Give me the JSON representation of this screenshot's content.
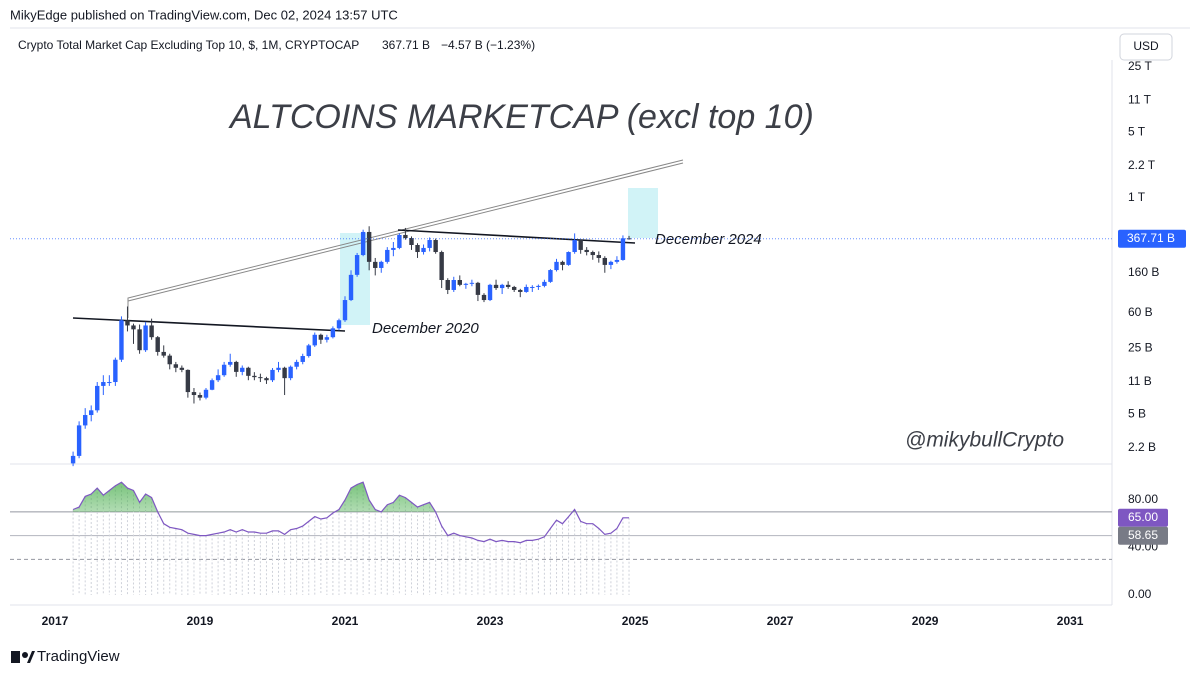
{
  "header": {
    "publisher": "MikyEdge published on TradingView.com, Dec 02, 2024 13:57 UTC",
    "legend": "Crypto Total Market Cap Excluding Top 10, $, 1M, CRYPTOCAP",
    "price": "367.71 B",
    "change": "−4.57 B (−1.23%)",
    "currency": "USD"
  },
  "footer": {
    "brand": "TradingView"
  },
  "chart_data": [
    {
      "type": "candlestick",
      "title": "ALTCOINS MARKETCAP (excl top 10)",
      "annotations": [
        "December 2020",
        "December 2024",
        "@mikybullCrypto"
      ],
      "x": [
        2017.25,
        2017.333,
        2017.417,
        2017.5,
        2017.583,
        2017.667,
        2017.75,
        2017.833,
        2017.917,
        2018,
        2018.083,
        2018.167,
        2018.25,
        2018.333,
        2018.417,
        2018.5,
        2018.583,
        2018.667,
        2018.75,
        2018.833,
        2018.917,
        2019,
        2019.083,
        2019.167,
        2019.25,
        2019.333,
        2019.417,
        2019.5,
        2019.583,
        2019.667,
        2019.75,
        2019.833,
        2019.917,
        2020,
        2020.083,
        2020.167,
        2020.25,
        2020.333,
        2020.417,
        2020.5,
        2020.583,
        2020.667,
        2020.75,
        2020.833,
        2020.917,
        2021,
        2021.083,
        2021.167,
        2021.25,
        2021.333,
        2021.417,
        2021.5,
        2021.583,
        2021.667,
        2021.75,
        2021.833,
        2021.917,
        2022,
        2022.083,
        2022.167,
        2022.25,
        2022.333,
        2022.417,
        2022.5,
        2022.583,
        2022.667,
        2022.75,
        2022.833,
        2022.917,
        2023,
        2023.083,
        2023.167,
        2023.25,
        2023.333,
        2023.417,
        2023.5,
        2023.583,
        2023.667,
        2023.75,
        2023.833,
        2023.917,
        2024,
        2024.083,
        2024.167,
        2024.25,
        2024.333,
        2024.417,
        2024.5,
        2024.583,
        2024.667,
        2024.75,
        2024.833,
        2024.917
      ],
      "open": [
        1.5,
        1.8,
        3.8,
        4.9,
        5.5,
        10,
        11,
        11,
        19,
        50,
        44,
        40,
        24,
        44,
        33,
        23,
        21,
        17,
        15.6,
        14.8,
        8.6,
        8,
        7.5,
        9.1,
        11.5,
        13,
        16.8,
        18,
        14.1,
        15.6,
        12.8,
        12.4,
        12.1,
        11.5,
        14.8,
        15.6,
        12.1,
        16,
        18,
        20.8,
        27,
        35,
        31,
        33,
        41,
        50,
        82,
        152,
        247,
        435,
        209,
        180,
        209,
        280,
        294,
        404,
        375,
        316,
        266,
        294,
        357,
        266,
        134,
        105,
        134,
        119,
        122,
        125,
        93,
        82,
        119,
        110,
        119,
        113,
        105,
        100,
        113,
        113,
        116,
        128,
        171,
        209,
        194,
        266,
        357,
        280,
        266,
        247,
        230,
        194,
        209,
        219,
        372.28
      ],
      "high": [
        2.0,
        4.2,
        5.8,
        6.2,
        11,
        13,
        13,
        20,
        55,
        70,
        46,
        45,
        48,
        52,
        34,
        27,
        22,
        18,
        16.5,
        15,
        9.5,
        8.5,
        9.5,
        12,
        15,
        18,
        22,
        18.5,
        16.5,
        16,
        14,
        13.5,
        12.5,
        15.5,
        18,
        16,
        16.5,
        19,
        22,
        28,
        37,
        36,
        35,
        43,
        52,
        90,
        170,
        260,
        460,
        500,
        230,
        215,
        300,
        340,
        420,
        480,
        390,
        330,
        320,
        380,
        370,
        275,
        140,
        145,
        150,
        125,
        135,
        128,
        97,
        122,
        135,
        122,
        130,
        116,
        108,
        120,
        118,
        120,
        135,
        175,
        225,
        215,
        270,
        420,
        360,
        300,
        275,
        270,
        240,
        215,
        240,
        400,
        395
      ],
      "low": [
        1.4,
        1.7,
        3.5,
        4.2,
        5.2,
        8,
        10,
        10,
        18,
        38,
        28,
        22,
        23,
        31,
        21,
        20,
        15,
        14,
        14,
        7.5,
        6.5,
        7,
        7.2,
        9,
        11,
        12.5,
        16,
        12.5,
        13,
        11.5,
        11.5,
        11,
        10.5,
        11,
        14,
        8,
        11.5,
        15,
        17,
        20,
        26,
        28,
        29,
        32,
        39,
        48,
        80,
        145,
        240,
        170,
        150,
        160,
        200,
        240,
        285,
        360,
        280,
        230,
        250,
        270,
        255,
        110,
        95,
        100,
        115,
        108,
        115,
        80,
        78,
        80,
        105,
        95,
        108,
        100,
        88,
        98,
        100,
        105,
        112,
        125,
        165,
        170,
        190,
        255,
        255,
        245,
        220,
        205,
        160,
        175,
        200,
        215,
        360
      ],
      "close": [
        1.8,
        3.8,
        4.9,
        5.5,
        10,
        11,
        11,
        19,
        50,
        44,
        40,
        24,
        44,
        33,
        23,
        21,
        17,
        15.6,
        14.8,
        8.6,
        8.0,
        7.5,
        9.1,
        11.5,
        13,
        16.8,
        18,
        14.1,
        15.6,
        12.8,
        12.4,
        12.1,
        11.5,
        14.8,
        15.6,
        12.1,
        16,
        18,
        20.8,
        27,
        35,
        31,
        33,
        41,
        50,
        82,
        152,
        247,
        435,
        209,
        180,
        209,
        280,
        294,
        404,
        375,
        316,
        266,
        294,
        357,
        266,
        134,
        105,
        134,
        119,
        122,
        125,
        93,
        82,
        119,
        110,
        119,
        113,
        105,
        100,
        113,
        113,
        116,
        128,
        171,
        209,
        194,
        266,
        357,
        280,
        266,
        247,
        230,
        194,
        209,
        219,
        372.28,
        367.71
      ],
      "last_label": "367.71 B",
      "up_color": "#2962ff",
      "down_color": "#363a45",
      "log_scale": true,
      "xlim": [
        2016.38,
        2031.55
      ],
      "xticks": [
        2017,
        2019,
        2021,
        2023,
        2025,
        2027,
        2029,
        2031
      ],
      "ylim": [
        1.55,
        29400
      ],
      "yticks": [
        {
          "value": 25000,
          "label": "25 T"
        },
        {
          "value": 11000,
          "label": "11 T"
        },
        {
          "value": 5000,
          "label": "5 T"
        },
        {
          "value": 2200,
          "label": "2.2 T"
        },
        {
          "value": 1000,
          "label": "1 T"
        },
        {
          "value": 160,
          "label": "160 B"
        },
        {
          "value": 60,
          "label": "60 B"
        },
        {
          "value": 25,
          "label": "25 B"
        },
        {
          "value": 11,
          "label": "11 B"
        },
        {
          "value": 5,
          "label": "5 B"
        },
        {
          "value": 2.2,
          "label": "2.2 B"
        }
      ]
    },
    {
      "type": "line",
      "values": [
        72,
        74,
        83,
        85,
        90,
        84,
        88,
        92,
        95,
        90,
        88,
        78,
        85,
        82,
        70,
        60,
        57,
        56,
        55,
        52,
        51,
        50,
        50,
        51,
        52,
        53,
        55,
        53,
        55,
        53,
        53,
        52,
        52,
        54,
        54,
        51,
        55,
        56,
        58,
        62,
        66,
        64,
        65,
        69,
        72,
        80,
        90,
        93,
        95,
        80,
        72,
        70,
        76,
        78,
        84,
        82,
        78,
        74,
        76,
        78,
        70,
        58,
        50,
        52,
        50,
        49,
        48,
        46,
        45,
        47,
        45,
        46,
        45,
        45,
        44,
        46,
        46,
        47,
        49,
        56,
        63,
        60,
        66,
        72,
        62,
        60,
        60,
        56,
        51,
        52,
        56,
        65,
        65
      ],
      "last_label": "65.00",
      "ma": 58.65,
      "color": "#7e57c2",
      "ma_color": "#787b86",
      "fill_color": "#4caf50",
      "bands": [
        70,
        50,
        30
      ],
      "ylim": [
        -4.2,
        108.6
      ],
      "yticks": [
        {
          "value": 80,
          "label": "80.00"
        },
        {
          "value": 40,
          "label": "40.00"
        },
        {
          "value": 0,
          "label": "0.00"
        }
      ]
    }
  ]
}
